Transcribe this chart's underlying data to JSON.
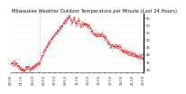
{
  "title": "Milwaukee Weather Outdoor Temperature per Minute (Last 24 Hours)",
  "bg_color": "#ffffff",
  "line_color": "#dd0000",
  "grid_color": "#cccccc",
  "vline_color": "#aaaaaa",
  "ylim": [
    28,
    68
  ],
  "ytick_values": [
    30,
    35,
    40,
    45,
    50,
    55,
    60,
    65
  ],
  "xlim": [
    0,
    1440
  ],
  "vline_pos": 315,
  "title_fontsize": 3.8,
  "tick_fontsize": 2.8,
  "n_points": 1440,
  "temp_start": 34,
  "temp_dip": 30,
  "temp_peak": 65,
  "temp_end": 42
}
